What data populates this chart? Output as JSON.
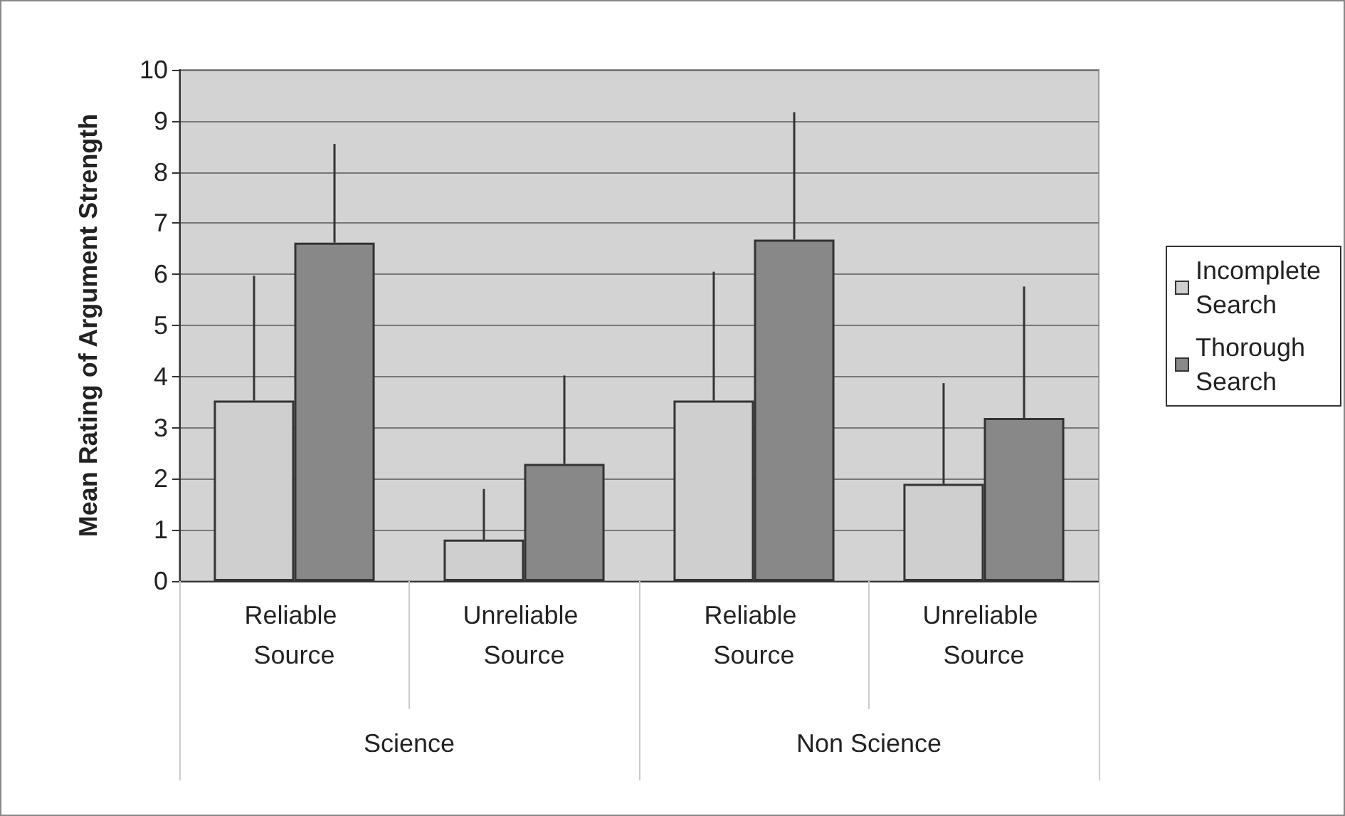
{
  "chart_data": {
    "type": "bar",
    "ylabel": "Mean Rating of Argument Strength",
    "categories": [
      "Reliable Source",
      "Unreliable Source",
      "Reliable Source",
      "Unreliable Source"
    ],
    "series": [
      {
        "name": "Incomplete Search",
        "color": "#cfcfcf",
        "values": [
          3.53,
          0.81,
          3.53,
          1.9
        ],
        "errors": [
          [
            3.53,
            5.97
          ],
          [
            0.81,
            1.8
          ],
          [
            3.53,
            6.05
          ],
          [
            1.9,
            3.87
          ]
        ]
      },
      {
        "name": "Thorough Search",
        "color": "#888888",
        "values": [
          6.62,
          2.29,
          6.68,
          3.19
        ],
        "errors": [
          [
            6.62,
            8.55
          ],
          [
            2.29,
            4.02
          ],
          [
            6.68,
            9.17
          ],
          [
            3.19,
            5.76
          ]
        ]
      }
    ],
    "annotations": [
      "Science",
      "Non Science"
    ],
    "ylim": [
      0,
      10
    ],
    "yticks": [
      0,
      1,
      2,
      3,
      4,
      5,
      6,
      7,
      8,
      9,
      10
    ],
    "grid": "y",
    "legend": "right"
  }
}
